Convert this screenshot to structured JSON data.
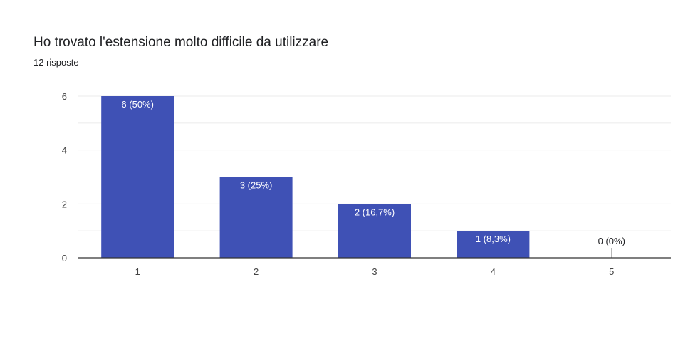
{
  "header": {
    "title": "Ho trovato l'estensione molto difficile da utilizzare",
    "responses": "12 risposte"
  },
  "colors": {
    "bar": "#3f51b5",
    "bar_label_inside": "#ffffff",
    "bar_label_outside": "#202124",
    "grid": "#ebebeb",
    "axis": "#333333"
  },
  "chart_data": {
    "type": "bar",
    "categories": [
      "1",
      "2",
      "3",
      "4",
      "5"
    ],
    "values": [
      6,
      3,
      2,
      1,
      0
    ],
    "data_labels": [
      "6 (50%)",
      "3 (25%)",
      "2 (16,7%)",
      "1 (8,3%)",
      "0 (0%)"
    ],
    "ylim": [
      0,
      6
    ],
    "yticks": [
      0,
      2,
      4,
      6
    ],
    "grid": true,
    "legend": "none"
  }
}
